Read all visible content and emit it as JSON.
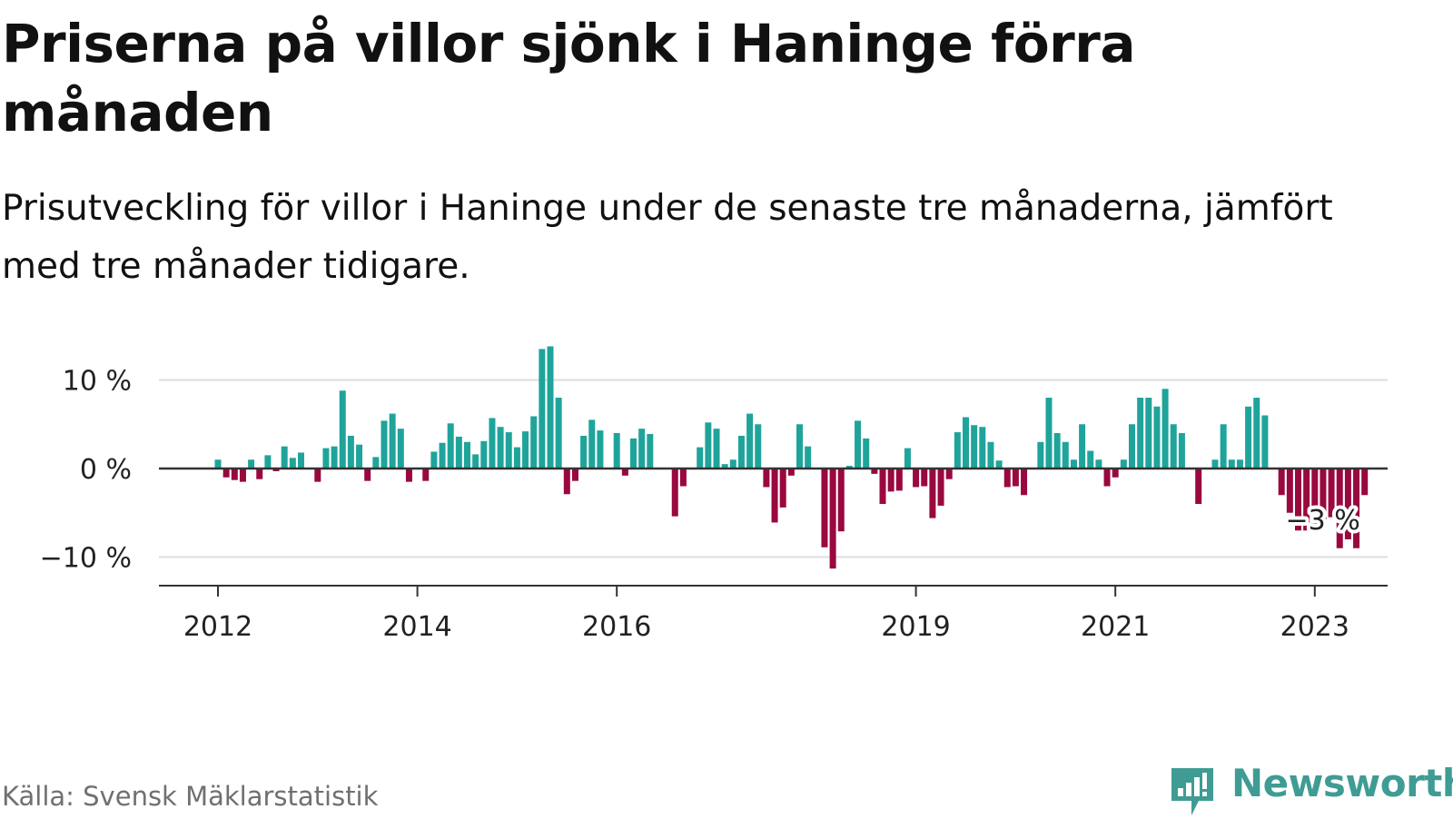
{
  "title": "Priserna på villor sjönk i Haninge förra månaden",
  "subtitle": "Prisutveckling för villor i Haninge under de senaste tre månaderna, jämfört med tre månader tidigare.",
  "source": "Källa: Svensk Mäklarstatistik",
  "brand": "Newsworthy",
  "colors": {
    "positive": "#1fa49b",
    "negative": "#99083f",
    "brand": "#3e9c94",
    "grid": "#dddddd",
    "axis": "#333333"
  },
  "chart_data": {
    "type": "bar",
    "title": "Priserna på villor sjönk i Haninge förra månaden",
    "subtitle": "Prisutveckling för villor i Haninge under de senaste tre månaderna, jämfört med tre månader tidigare.",
    "xlabel": "",
    "ylabel": "",
    "ylim": [
      -13,
      14
    ],
    "yticks": [
      10,
      0,
      -10
    ],
    "ytick_labels": [
      "10 %",
      "0 %",
      "−10 %"
    ],
    "xticks": [
      "2012-01",
      "2014-01",
      "2016-01",
      "2019-01",
      "2021-01",
      "2023-01"
    ],
    "xtick_labels": [
      "2012",
      "2014",
      "2016",
      "2019",
      "2021",
      "2023"
    ],
    "grid": true,
    "start_month": "2012-01",
    "values": [
      1,
      -1,
      -1.3,
      -1.5,
      1,
      -1.2,
      1.5,
      -0.3,
      2.5,
      1.2,
      1.8,
      0,
      -1.5,
      2.3,
      2.5,
      8.8,
      3.7,
      2.7,
      -1.4,
      1.3,
      5.4,
      6.2,
      4.5,
      -1.5,
      0,
      -1.4,
      1.9,
      2.9,
      5.1,
      3.6,
      3,
      1.6,
      3.1,
      5.7,
      4.7,
      4.1,
      2.4,
      4.2,
      5.9,
      13.5,
      13.8,
      8,
      -2.9,
      -1.4,
      3.7,
      5.5,
      4.3,
      0,
      4,
      -0.8,
      3.4,
      4.5,
      3.9,
      0,
      0,
      -5.4,
      -2,
      0,
      2.4,
      5.2,
      4.5,
      0.5,
      1,
      3.7,
      6.2,
      5,
      -2.1,
      -6.1,
      -4.4,
      -0.8,
      5,
      2.5,
      0,
      -8.9,
      -11.3,
      -7.1,
      0.3,
      5.4,
      3.4,
      -0.6,
      -4,
      -2.6,
      -2.5,
      2.3,
      -2.1,
      -2,
      -5.6,
      -4.2,
      -1.2,
      4.1,
      5.8,
      4.9,
      4.7,
      3,
      0.9,
      -2.1,
      -2,
      -3,
      0,
      3,
      8,
      4,
      3,
      1,
      5,
      2,
      1,
      -2,
      -1,
      1,
      5,
      8,
      8,
      7,
      9,
      5,
      4,
      0,
      -4,
      0,
      1,
      5,
      1,
      1,
      7,
      8,
      6,
      0,
      -3,
      -5,
      -7,
      -7,
      -7,
      -6,
      -5.5,
      -9,
      -8,
      -9,
      -3
    ],
    "annotations": [
      {
        "x": "2023-01",
        "y": -3,
        "text": "−3 %"
      }
    ]
  }
}
